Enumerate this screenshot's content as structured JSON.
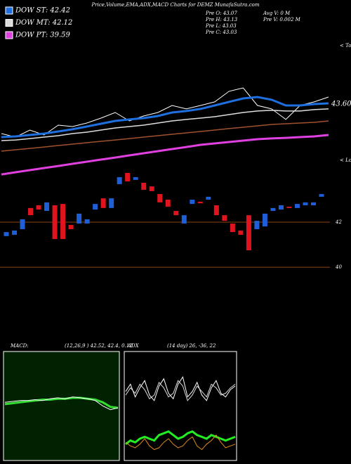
{
  "header": {
    "title": "Price,Volume,EMA,ADX,MACD Charts for DEMZ MunafaSutra.com",
    "info": [
      "Pre  O: 43.07",
      "Pre  H: 43.13",
      "Pre  L: 43.03",
      "Pre  C: 43.03"
    ],
    "info2": [
      "Avg  V: 0  M",
      "Pre  V: 0.002  M"
    ]
  },
  "chart_data": [
    {
      "type": "line",
      "ylim": [
        34.05,
        51.45
      ],
      "yticks": [
        {
          "value": 43.6,
          "label": "43.60"
        }
      ],
      "grid": false,
      "annotations": [
        "< Tops",
        "< Lows"
      ],
      "series": [
        {
          "color": "#ffffff",
          "width": 1,
          "values": [
            39.85,
            39.4,
            40.3,
            39.67,
            40.92,
            40.74,
            41.19,
            41.81,
            42.53,
            41.46,
            42.08,
            42.53,
            43.42,
            42.98,
            43.42,
            43.87,
            45.21,
            45.65,
            43.42,
            42.98,
            41.64,
            43.42,
            43.87,
            44.49
          ]
        },
        {
          "name": "DOW ST: 42.42",
          "color": "#1e6fe0",
          "width": 3,
          "values": [
            39.4,
            39.49,
            39.67,
            39.85,
            40.12,
            40.39,
            40.74,
            41.1,
            41.46,
            41.64,
            41.81,
            42.08,
            42.53,
            42.71,
            42.98,
            43.42,
            43.87,
            44.31,
            44.49,
            44.14,
            43.42,
            43.42,
            43.6,
            43.69
          ]
        },
        {
          "name": "DOW MT: 42.12",
          "color": "#dddddd",
          "width": 1.5,
          "values": [
            38.96,
            39.04,
            39.22,
            39.4,
            39.58,
            39.85,
            40.03,
            40.3,
            40.56,
            40.74,
            40.92,
            41.19,
            41.46,
            41.64,
            41.81,
            41.99,
            42.26,
            42.53,
            42.71,
            42.8,
            42.71,
            42.71,
            42.89,
            42.98
          ]
        },
        {
          "color": "#a0522d",
          "width": 1.5,
          "values": [
            37.62,
            37.8,
            37.97,
            38.15,
            38.33,
            38.51,
            38.69,
            38.87,
            39.04,
            39.22,
            39.4,
            39.58,
            39.76,
            39.94,
            40.12,
            40.3,
            40.48,
            40.65,
            40.83,
            41.01,
            41.1,
            41.19,
            41.28,
            41.46
          ]
        },
        {
          "name": "DOW PT: 39.59",
          "color": "#e040e0",
          "width": 3,
          "values": [
            34.67,
            34.94,
            35.21,
            35.48,
            35.74,
            36.01,
            36.28,
            36.55,
            36.81,
            37.08,
            37.35,
            37.62,
            37.89,
            38.15,
            38.42,
            38.6,
            38.78,
            38.96,
            39.14,
            39.23,
            39.31,
            39.4,
            39.49,
            39.67
          ]
        }
      ]
    },
    {
      "type": "candlestick",
      "ylim": [
        39.69,
        44.375
      ],
      "yticks": [
        42,
        40
      ],
      "grid": true,
      "grid_color": "#8b4513",
      "up_color": "#1e5fd8",
      "down_color": "#e0141e",
      "open": [
        41.38,
        41.44,
        41.69,
        42.63,
        42.75,
        42.5,
        42.75,
        42.81,
        41.88,
        41.94,
        41.94,
        42.56,
        43.06,
        42.63,
        43.69,
        44.19,
        43.88,
        43.75,
        43.59,
        43.25,
        43.0,
        42.5,
        41.94,
        42.81,
        42.91,
        43.0,
        42.75,
        42.31,
        41.94,
        41.63,
        42.31,
        41.69,
        41.81,
        42.5,
        42.56,
        42.69,
        42.63,
        42.75,
        42.75,
        43.13
      ],
      "close": [
        41.56,
        41.63,
        42.13,
        42.31,
        42.56,
        42.88,
        41.25,
        41.25,
        41.69,
        42.38,
        42.13,
        42.81,
        42.63,
        43.06,
        44.0,
        43.81,
        44.0,
        43.44,
        43.38,
        42.88,
        42.69,
        42.31,
        42.31,
        43.0,
        42.84,
        43.13,
        42.31,
        42.06,
        41.56,
        41.44,
        40.75,
        42.06,
        42.38,
        42.63,
        42.75,
        42.63,
        42.81,
        42.88,
        42.88,
        43.25
      ]
    },
    {
      "type": "line",
      "title": "MACD:",
      "subtitle": "(12,26,9 ) 42.52, 42.4, 0.12",
      "ylim": [
        -3,
        3
      ],
      "series": [
        {
          "color": "#33dd33",
          "width": 3,
          "values": [
            0.1,
            0.15,
            0.2,
            0.25,
            0.3,
            0.35,
            0.35,
            0.4,
            0.4,
            0.45,
            0.45,
            0.4,
            0.35,
            0.2,
            -0.05,
            -0.1
          ]
        },
        {
          "color": "#ffffff",
          "width": 1,
          "values": [
            0.2,
            0.25,
            0.3,
            0.3,
            0.35,
            0.3,
            0.4,
            0.45,
            0.4,
            0.5,
            0.45,
            0.4,
            0.3,
            0.0,
            -0.2,
            -0.1
          ]
        }
      ]
    },
    {
      "type": "line",
      "title": "ADX",
      "subtitle": "(14 day) 26, -36, 22",
      "ylim": [
        0,
        60
      ],
      "series": [
        {
          "color": "#ffffff",
          "width": 1,
          "values": [
            38,
            42,
            35,
            40,
            44,
            36,
            33,
            41,
            45,
            37,
            34,
            42,
            46,
            35,
            38,
            43,
            36,
            33,
            40,
            44,
            37,
            35,
            39,
            41
          ]
        },
        {
          "color": "#dddddd",
          "width": 1,
          "values": [
            36,
            40,
            37,
            42,
            39,
            34,
            36,
            43,
            40,
            35,
            37,
            44,
            41,
            33,
            36,
            41,
            38,
            35,
            42,
            40,
            36,
            37,
            40,
            42
          ]
        },
        {
          "color": "#22ee22",
          "width": 3,
          "values": [
            9,
            11,
            10,
            12,
            13,
            12,
            11,
            14,
            15,
            16,
            14,
            12,
            13,
            15,
            16,
            14,
            13,
            12,
            14,
            13,
            12,
            11,
            12,
            13
          ]
        },
        {
          "color": "#e08a1e",
          "width": 1,
          "values": [
            10,
            8,
            7,
            9,
            12,
            8,
            6,
            7,
            10,
            12,
            9,
            7,
            8,
            11,
            13,
            8,
            6,
            9,
            11,
            14,
            10,
            7,
            8,
            9
          ]
        }
      ]
    }
  ]
}
